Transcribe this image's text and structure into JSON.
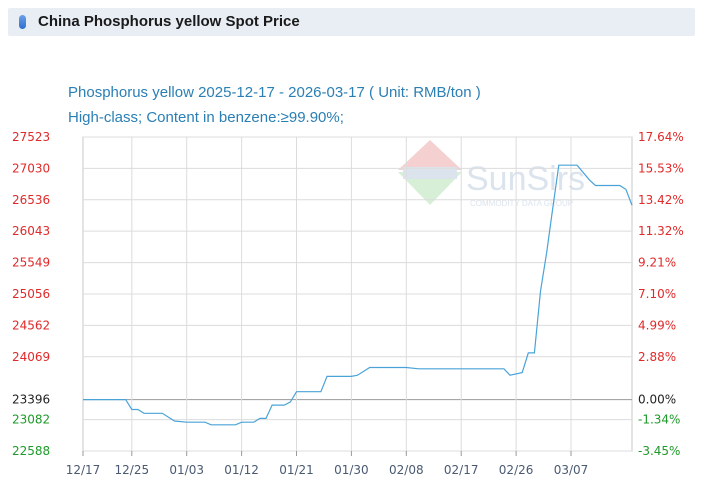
{
  "header": {
    "title": "China Phosphorus yellow Spot Price"
  },
  "subtitle": {
    "line1": "Phosphorus yellow 2025-12-17 - 2026-03-17    ( Unit: RMB/ton )",
    "line2": "High-class; Content in benzene:≥99.90%;"
  },
  "watermark": {
    "brand": "SunSirs",
    "tagline": "COMMODITY DATA GROUP"
  },
  "chart_data": {
    "type": "line",
    "title": "Phosphorus yellow 2025-12-17 - 2026-03-17",
    "unit": "RMB/ton",
    "base_value": 23396,
    "ylim": [
      22588,
      27523
    ],
    "left_ticks": [
      "27523",
      "27030",
      "26536",
      "26043",
      "25549",
      "25056",
      "24562",
      "24069",
      "23396",
      "23082",
      "22588"
    ],
    "right_ticks": [
      "17.64%",
      "15.53%",
      "13.42%",
      "11.32%",
      "9.21%",
      "7.10%",
      "4.99%",
      "2.88%",
      "0.00%",
      "-1.34%",
      "-3.45%"
    ],
    "left_tick_values": [
      27523,
      27030,
      26536,
      26043,
      25549,
      25056,
      24562,
      24069,
      23396,
      23082,
      22588
    ],
    "x_tick_labels": [
      "12/17",
      "12/25",
      "01/03",
      "01/12",
      "01/21",
      "01/30",
      "02/08",
      "02/17",
      "02/26",
      "03/07"
    ],
    "x_start_date": "2025-12-17",
    "x_end_date": "2026-03-17",
    "line_color": "#4aa3d8",
    "grid": true,
    "series": [
      {
        "name": "",
        "points": [
          [
            "2025-12-17",
            23396
          ],
          [
            "2025-12-24",
            23396
          ],
          [
            "2025-12-25",
            23240
          ],
          [
            "2025-12-26",
            23240
          ],
          [
            "2025-12-27",
            23180
          ],
          [
            "2025-12-30",
            23180
          ],
          [
            "2026-01-01",
            23060
          ],
          [
            "2026-01-03",
            23040
          ],
          [
            "2026-01-06",
            23040
          ],
          [
            "2026-01-07",
            23000
          ],
          [
            "2026-01-11",
            23000
          ],
          [
            "2026-01-12",
            23040
          ],
          [
            "2026-01-14",
            23040
          ],
          [
            "2026-01-15",
            23100
          ],
          [
            "2026-01-16",
            23100
          ],
          [
            "2026-01-17",
            23310
          ],
          [
            "2026-01-19",
            23310
          ],
          [
            "2026-01-20",
            23360
          ],
          [
            "2026-01-21",
            23520
          ],
          [
            "2026-01-25",
            23520
          ],
          [
            "2026-01-26",
            23760
          ],
          [
            "2026-01-30",
            23760
          ],
          [
            "2026-01-31",
            23780
          ],
          [
            "2026-02-02",
            23900
          ],
          [
            "2026-02-08",
            23900
          ],
          [
            "2026-02-10",
            23880
          ],
          [
            "2026-02-24",
            23880
          ],
          [
            "2026-02-25",
            23780
          ],
          [
            "2026-02-27",
            23820
          ],
          [
            "2026-02-28",
            24130
          ],
          [
            "2026-03-01",
            24130
          ],
          [
            "2026-03-02",
            25100
          ],
          [
            "2026-03-03",
            25700
          ],
          [
            "2026-03-04",
            26400
          ],
          [
            "2026-03-05",
            27080
          ],
          [
            "2026-03-08",
            27080
          ],
          [
            "2026-03-10",
            26850
          ],
          [
            "2026-03-11",
            26760
          ],
          [
            "2026-03-15",
            26760
          ],
          [
            "2026-03-16",
            26700
          ],
          [
            "2026-03-17",
            26450
          ]
        ]
      }
    ]
  }
}
